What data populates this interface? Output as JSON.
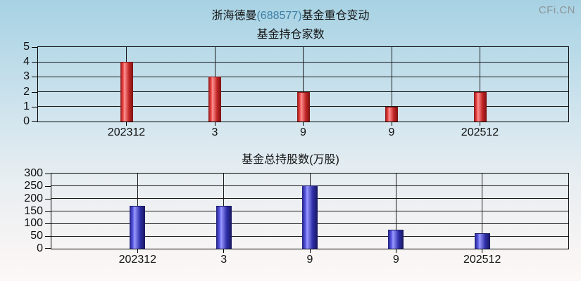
{
  "page": {
    "title": {
      "prefix": "浙海德曼",
      "code": "(688577)",
      "suffix": "基金重仓变动"
    },
    "watermark": "CFi.CN"
  },
  "colors": {
    "title_code": "#3d7ea6",
    "watermark": "#8e959b",
    "axis": "#000000",
    "grid": "#1a1a1a",
    "text": "#111111",
    "background": [
      "#a7d2e3",
      "#d2e5ee",
      "#f2f2f3",
      "#fdf8f6"
    ],
    "bar_red": [
      "#8c1616",
      "#f04848",
      "#ff9090",
      "#c02424",
      "#7c1212"
    ],
    "bar_blue": [
      "#20207e",
      "#5a5ae6",
      "#9a9aff",
      "#2e2ea8",
      "#17175e"
    ]
  },
  "chart_data": [
    {
      "type": "bar",
      "title": "基金持仓家数",
      "categories": [
        "202312",
        "3",
        "9",
        "9",
        "202512"
      ],
      "values": [
        4,
        3,
        2,
        1,
        2
      ],
      "ylim": [
        0,
        5
      ],
      "yticks": [
        0,
        1,
        2,
        3,
        4,
        5
      ],
      "xlabel": "",
      "ylabel": "",
      "grid": true,
      "legend": "none",
      "bar_color": "red"
    },
    {
      "type": "bar",
      "title": "基金总持股数(万股)",
      "categories": [
        "202312",
        "3",
        "9",
        "9",
        "202512"
      ],
      "values": [
        170,
        170,
        253,
        77,
        62
      ],
      "ylim": [
        0,
        300
      ],
      "yticks": [
        0,
        50,
        100,
        150,
        200,
        250,
        300
      ],
      "xlabel": "",
      "ylabel": "",
      "grid": true,
      "legend": "none",
      "bar_color": "blue"
    }
  ]
}
